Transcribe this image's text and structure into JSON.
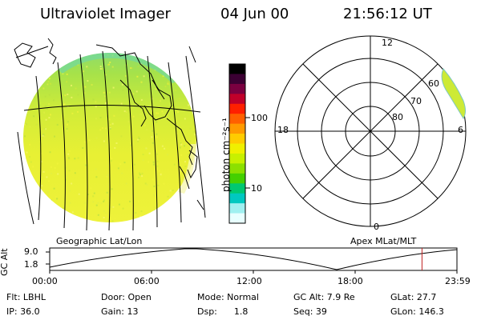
{
  "header": {
    "title": "Ultraviolet Imager",
    "date": "04 Jun 00",
    "time": "21:56:12 UT"
  },
  "colorbar": {
    "unit_label": "photon cm⁻²s⁻¹",
    "tick_100": "100",
    "tick_10": "10",
    "colors": [
      "#000000",
      "#3b0033",
      "#7a0040",
      "#c0002a",
      "#ff2000",
      "#ff6000",
      "#ff9a00",
      "#ffcc00",
      "#f0f000",
      "#c8f000",
      "#8ce000",
      "#44d000",
      "#00c870",
      "#00c8c0",
      "#a0f0f0",
      "#e8ffff"
    ]
  },
  "polar": {
    "mlt_12": "12",
    "mlt_18": "18",
    "mlt_6": "6",
    "mlt_0": "0",
    "lat_60": "60",
    "lat_70": "70",
    "lat_80": "80"
  },
  "projection_labels": {
    "left": "Geographic Lat/Lon",
    "right": "Apex MLat/MLT"
  },
  "altitude_plot": {
    "axis_label": "GC Alt",
    "y_max": "9.0",
    "y_min": "1.8",
    "x_ticks": [
      "00:00",
      "06:00",
      "12:00",
      "18:00",
      "23:59"
    ],
    "marker_time_hours": 21.94
  },
  "footer": {
    "flt": "Flt: LBHL",
    "door": "Door: Open",
    "mode": "Mode: Normal",
    "gc_alt": "GC Alt: 7.9 Re",
    "glat": "GLat:  27.7",
    "ip": "IP: 36.0",
    "gain": "Gain: 13",
    "dsp": "Dsp:      1.8",
    "seq": "Seq: 39",
    "glon": "GLon: 146.3"
  },
  "colors": {
    "earth_fill": "#e6f032",
    "earth_north": "#a8e040",
    "aurora": "#c8e830",
    "marker": "#c02020"
  }
}
